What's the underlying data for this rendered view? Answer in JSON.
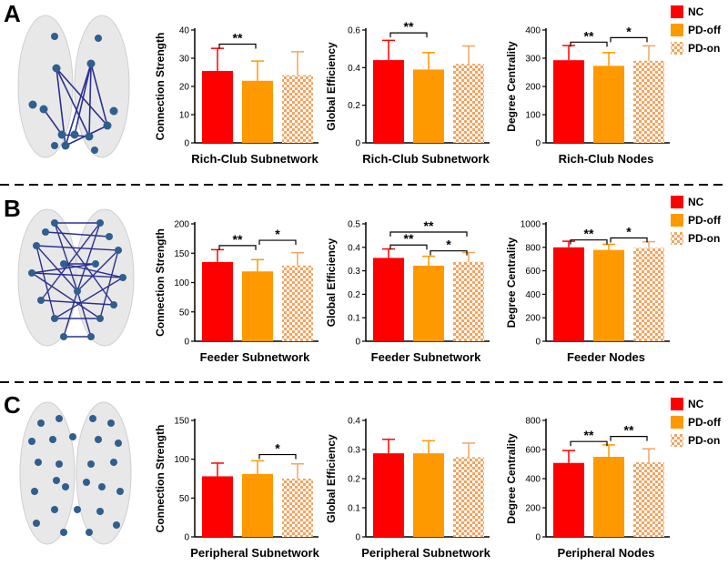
{
  "figure_title": "",
  "colors": {
    "nc": "#ff0000",
    "pd_off": "#ff9900",
    "pd_on_check": "#f4a460",
    "pd_on_base": "#ffffff",
    "axis": "#000000",
    "brain": "#e8e8e8",
    "node": "#2e5f8f",
    "edge": "#2b318f"
  },
  "legend": [
    "NC",
    "PD-off",
    "PD-on"
  ],
  "icons": {
    "brain": "brain-network-icon"
  },
  "rows": [
    {
      "label": "A",
      "legend": [
        "NC",
        "PD-off",
        "PD-on"
      ]
    },
    {
      "label": "B",
      "legend": [
        "NC",
        "PD-off",
        "PD-on"
      ]
    },
    {
      "label": "C",
      "legend": [
        "NC",
        "PD-off",
        "PD-on"
      ]
    }
  ],
  "chart_data": [
    {
      "type": "bar",
      "panel": "A",
      "xlabel": "Rich-Club Subnetwork",
      "ylabel": "Connection Strength",
      "categories": [
        "NC",
        "PD-off",
        "PD-on"
      ],
      "values": [
        25.5,
        22,
        24
      ],
      "errors": [
        8,
        7,
        8.3
      ],
      "ylim": [
        0,
        40
      ],
      "ticks": [
        0,
        10,
        20,
        30,
        40
      ],
      "significance": [
        {
          "from": 0,
          "to": 1,
          "y": 35,
          "label": "**"
        }
      ]
    },
    {
      "type": "bar",
      "panel": "A",
      "xlabel": "Rich-Club Subnetwork",
      "ylabel": "Global Efficiency",
      "categories": [
        "NC",
        "PD-off",
        "PD-on"
      ],
      "values": [
        0.44,
        0.39,
        0.42
      ],
      "errors": [
        0.105,
        0.09,
        0.095
      ],
      "ylim": [
        0,
        0.6
      ],
      "ticks": [
        0,
        0.2,
        0.4,
        0.6
      ],
      "significance": [
        {
          "from": 0,
          "to": 1,
          "y": 0.585,
          "label": "**"
        }
      ]
    },
    {
      "type": "bar",
      "panel": "A",
      "xlabel": "Rich-Club Nodes",
      "ylabel": "Degree Centrality",
      "categories": [
        "NC",
        "PD-off",
        "PD-on"
      ],
      "values": [
        293,
        273,
        291
      ],
      "errors": [
        52,
        47,
        53
      ],
      "ylim": [
        0,
        400
      ],
      "ticks": [
        0,
        100,
        200,
        300,
        400
      ],
      "significance": [
        {
          "from": 0,
          "to": 1,
          "y": 357,
          "label": "**"
        },
        {
          "from": 1,
          "to": 2,
          "y": 373,
          "label": "*"
        }
      ]
    },
    {
      "type": "bar",
      "panel": "B",
      "xlabel": "Feeder Subnetwork",
      "ylabel": "Connection Strength",
      "categories": [
        "NC",
        "PD-off",
        "PD-on"
      ],
      "values": [
        135,
        119,
        129
      ],
      "errors": [
        21,
        20,
        22
      ],
      "ylim": [
        0,
        200
      ],
      "ticks": [
        0,
        50,
        100,
        150,
        200
      ],
      "significance": [
        {
          "from": 0,
          "to": 1,
          "y": 163,
          "label": "**"
        },
        {
          "from": 1,
          "to": 2,
          "y": 172,
          "label": "*"
        }
      ]
    },
    {
      "type": "bar",
      "panel": "B",
      "xlabel": "Feeder Subnetwork",
      "ylabel": "Global Efficiency",
      "categories": [
        "NC",
        "PD-off",
        "PD-on"
      ],
      "values": [
        0.355,
        0.322,
        0.338
      ],
      "errors": [
        0.038,
        0.04,
        0.04
      ],
      "ylim": [
        0,
        0.5
      ],
      "ticks": [
        0,
        0.1,
        0.2,
        0.3,
        0.4,
        0.5
      ],
      "significance": [
        {
          "from": 0,
          "to": 2,
          "y": 0.465,
          "label": "**"
        },
        {
          "from": 0,
          "to": 1,
          "y": 0.41,
          "label": "**"
        },
        {
          "from": 1,
          "to": 2,
          "y": 0.385,
          "label": "*"
        }
      ]
    },
    {
      "type": "bar",
      "panel": "B",
      "xlabel": "Feeder Nodes",
      "ylabel": "Degree Centrality",
      "categories": [
        "NC",
        "PD-off",
        "PD-on"
      ],
      "values": [
        800,
        778,
        795
      ],
      "errors": [
        52,
        48,
        53
      ],
      "ylim": [
        0,
        1000
      ],
      "ticks": [
        0,
        200,
        400,
        600,
        800,
        1000
      ],
      "significance": [
        {
          "from": 0,
          "to": 1,
          "y": 863,
          "label": "**"
        },
        {
          "from": 1,
          "to": 2,
          "y": 880,
          "label": "*"
        }
      ]
    },
    {
      "type": "bar",
      "panel": "C",
      "xlabel": "Peripheral Subnetwork",
      "ylabel": "Connection Strength",
      "categories": [
        "NC",
        "PD-off",
        "PD-on"
      ],
      "values": [
        78,
        81,
        75
      ],
      "errors": [
        17,
        17,
        19
      ],
      "ylim": [
        0,
        150
      ],
      "ticks": [
        0,
        50,
        100,
        150
      ],
      "significance": [
        {
          "from": 1,
          "to": 2,
          "y": 106,
          "label": "*"
        }
      ]
    },
    {
      "type": "bar",
      "panel": "C",
      "xlabel": "Peripheral Subnetwork",
      "ylabel": "Global Efficiency",
      "categories": [
        "NC",
        "PD-off",
        "PD-on"
      ],
      "values": [
        0.287,
        0.287,
        0.274
      ],
      "errors": [
        0.048,
        0.043,
        0.048
      ],
      "ylim": [
        0,
        0.4
      ],
      "ticks": [
        0,
        0.1,
        0.2,
        0.3,
        0.4
      ],
      "significance": []
    },
    {
      "type": "bar",
      "panel": "C",
      "xlabel": "Peripheral Nodes",
      "ylabel": "Degree Centrality",
      "categories": [
        "NC",
        "PD-off",
        "PD-on"
      ],
      "values": [
        508,
        550,
        512
      ],
      "errors": [
        85,
        82,
        93
      ],
      "ylim": [
        0,
        800
      ],
      "ticks": [
        0,
        200,
        400,
        600,
        800
      ],
      "significance": [
        {
          "from": 0,
          "to": 1,
          "y": 655,
          "label": "**"
        },
        {
          "from": 1,
          "to": 2,
          "y": 690,
          "label": "**"
        }
      ]
    }
  ]
}
